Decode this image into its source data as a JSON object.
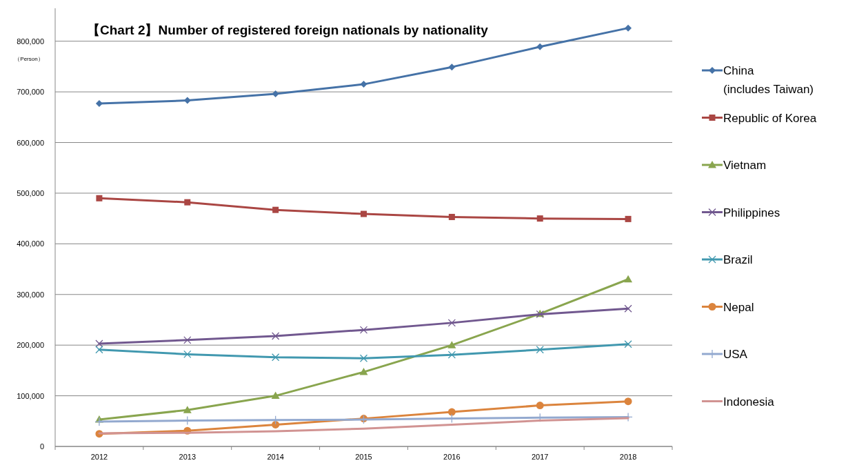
{
  "chart_data": {
    "type": "line",
    "title": "【Chart 2】Number of registered foreign nationals  by  nationality",
    "categories": [
      "2012",
      "2013",
      "2014",
      "2015",
      "2016",
      "2017",
      "2018"
    ],
    "series": [
      {
        "name": "China\n(includes Taiwan)",
        "color": "#4572a7",
        "marker": "diamond",
        "values": [
          677000,
          683000,
          696000,
          715000,
          749000,
          789000,
          826000
        ]
      },
      {
        "name": "Republic of Korea",
        "color": "#aa4643",
        "marker": "square",
        "values": [
          490000,
          482000,
          467000,
          459000,
          453000,
          450000,
          449000
        ]
      },
      {
        "name": "Vietnam",
        "color": "#89a54e",
        "marker": "triangle",
        "values": [
          53000,
          72000,
          100000,
          147000,
          200000,
          262000,
          330000
        ]
      },
      {
        "name": "Philippines",
        "color": "#71588f",
        "marker": "cross",
        "values": [
          203000,
          210000,
          218000,
          230000,
          244000,
          261000,
          272000
        ]
      },
      {
        "name": "Brazil",
        "color": "#4198af",
        "marker": "cross",
        "values": [
          191000,
          182000,
          176000,
          174000,
          181000,
          191000,
          202000
        ]
      },
      {
        "name": "Nepal",
        "color": "#db843d",
        "marker": "circle",
        "values": [
          25000,
          31000,
          43000,
          55000,
          68000,
          81000,
          89000
        ]
      },
      {
        "name": "USA",
        "color": "#93a9cf",
        "marker": "plus",
        "values": [
          49000,
          51000,
          52000,
          53000,
          55000,
          57000,
          58000
        ]
      },
      {
        "name": "Indonesia",
        "color": "#d19392",
        "marker": "none",
        "values": [
          26000,
          27000,
          30000,
          35000,
          43000,
          51000,
          56000
        ]
      }
    ],
    "ylim": [
      0,
      865000
    ],
    "yticks": [
      {
        "value": 0,
        "label": "0"
      },
      {
        "value": 100000,
        "label": "100,000"
      },
      {
        "value": 200000,
        "label": "200,000"
      },
      {
        "value": 300000,
        "label": "300,000"
      },
      {
        "value": 400000,
        "label": "400,000"
      },
      {
        "value": 500000,
        "label": "500,000"
      },
      {
        "value": 600000,
        "label": "600,000"
      },
      {
        "value": 700000,
        "label": "700,000"
      },
      {
        "value": 800000,
        "label": "800,000"
      }
    ],
    "grid": "y",
    "legend": "right",
    "line_style": "solid",
    "annotations": [
      "（Person）"
    ]
  }
}
